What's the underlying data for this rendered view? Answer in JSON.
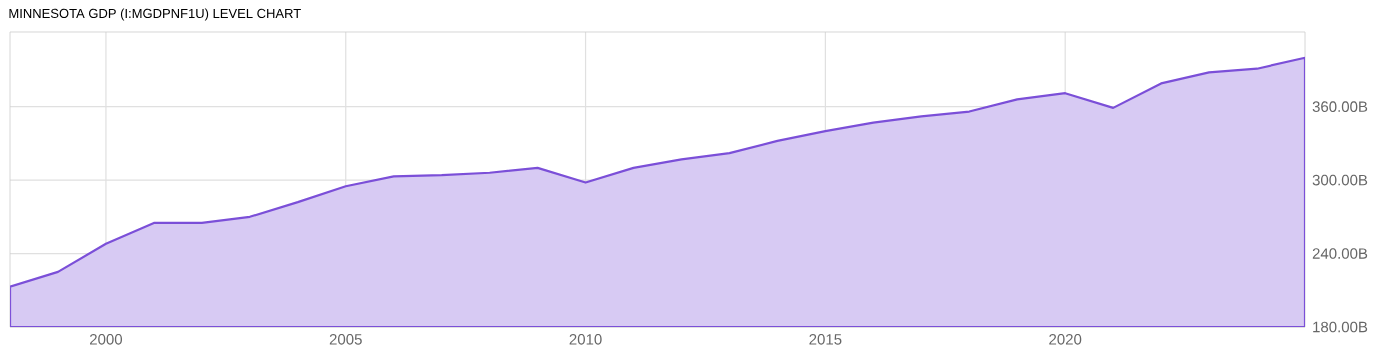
{
  "chart_data": {
    "type": "area",
    "title": "MINNESOTA GDP (I:MGDPNF1U) LEVEL CHART",
    "x": [
      1998,
      1999,
      2000,
      2001,
      2002,
      2003,
      2004,
      2005,
      2006,
      2007,
      2008,
      2009,
      2010,
      2011,
      2012,
      2013,
      2014,
      2015,
      2016,
      2017,
      2018,
      2019,
      2020,
      2021,
      2022,
      2023,
      2024,
      2025
    ],
    "values": [
      213,
      225,
      248,
      265,
      265,
      270,
      282,
      295,
      303,
      304,
      306,
      310,
      298,
      310,
      317,
      322,
      332,
      340,
      347,
      352,
      356,
      366,
      371,
      359,
      379,
      388,
      391,
      400
    ],
    "color": "#7b4fd8",
    "xlim": [
      1998,
      2025
    ],
    "xticks": [
      2000,
      2005,
      2010,
      2015,
      2020
    ],
    "ylim": [
      180,
      421
    ],
    "yticks": [
      {
        "value": 180,
        "label": "180.00B"
      },
      {
        "value": 240,
        "label": "240.00B"
      },
      {
        "value": 300,
        "label": "300.00B"
      },
      {
        "value": 360,
        "label": "360.00B"
      }
    ],
    "grid": true
  }
}
